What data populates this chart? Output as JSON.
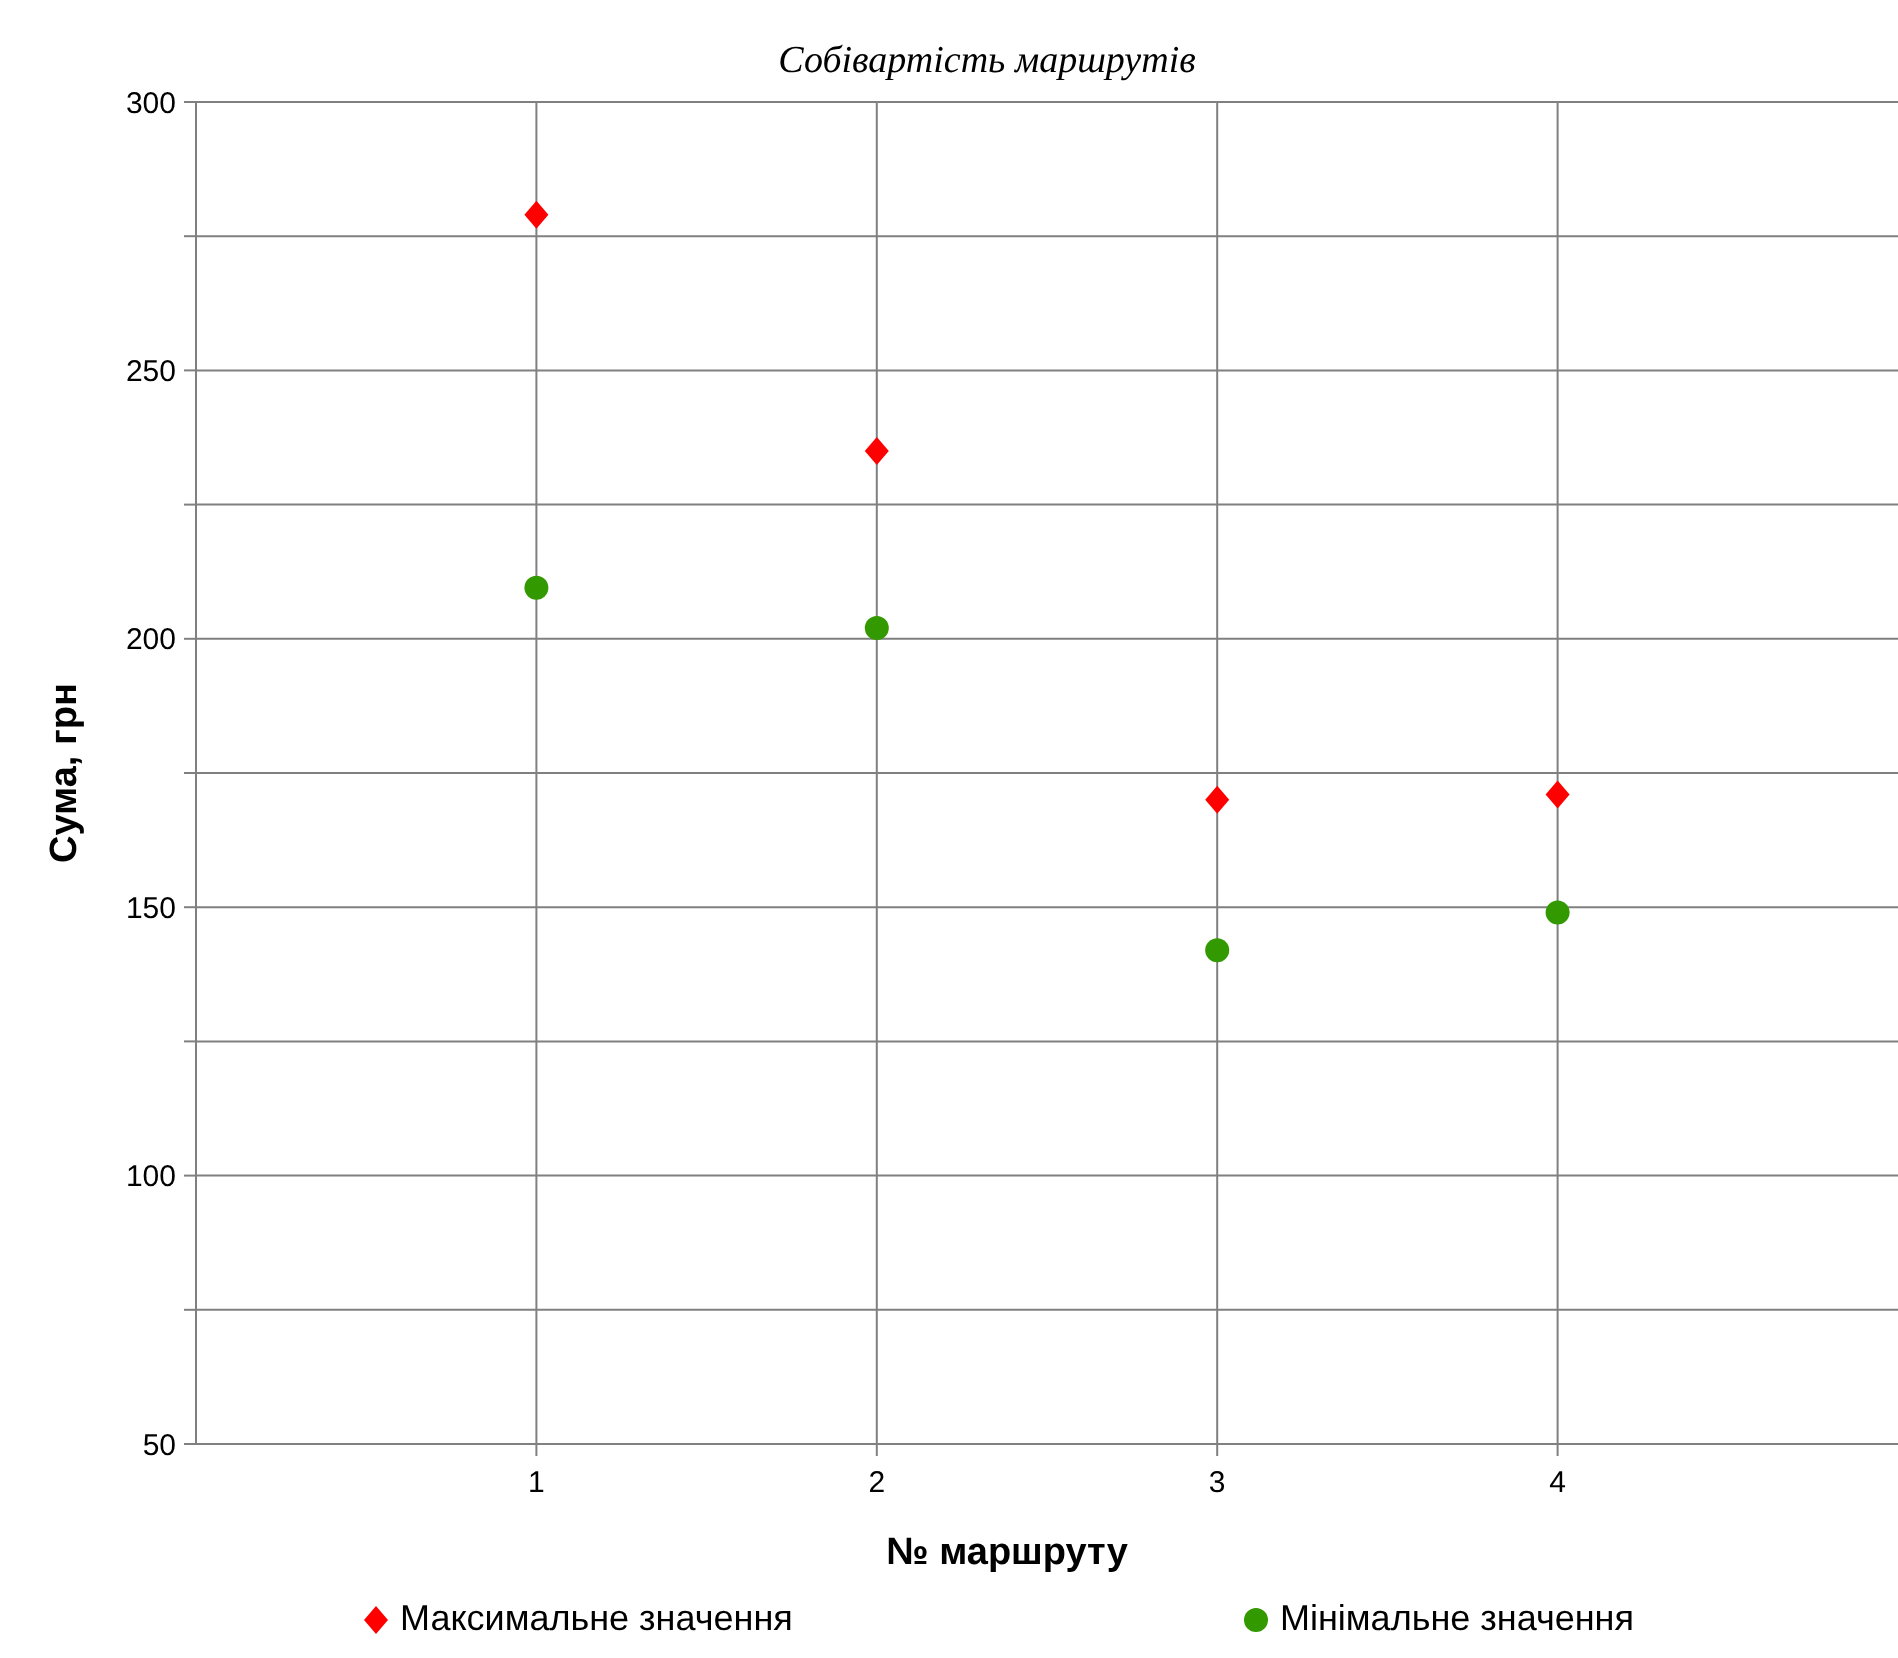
{
  "chart_data": {
    "type": "scatter",
    "title": "Собівартість маршрутів",
    "xlabel": "№ маршруту",
    "ylabel": "Сума, грн",
    "x": [
      1,
      2,
      3,
      4
    ],
    "series": [
      {
        "name": "Максимальне значення",
        "color": "#ff0000",
        "marker": "diamond",
        "values": [
          279,
          235,
          170,
          171
        ]
      },
      {
        "name": "Мінімальне значення",
        "color": "#339900",
        "marker": "circle",
        "values": [
          209.5,
          202,
          142,
          149
        ]
      }
    ],
    "xlim": [
      0,
      5
    ],
    "xticks": [
      1,
      2,
      3,
      4
    ],
    "ylim": [
      50,
      300
    ],
    "yticks": [
      50,
      {
        "value": 75,
        "label": null
      },
      100,
      {
        "value": 125,
        "label": null
      },
      150,
      {
        "value": 175,
        "label": null
      },
      200,
      {
        "value": 225,
        "label": null
      },
      250,
      {
        "value": 275,
        "label": null
      },
      300
    ],
    "grid": true,
    "legend": "bottom"
  }
}
